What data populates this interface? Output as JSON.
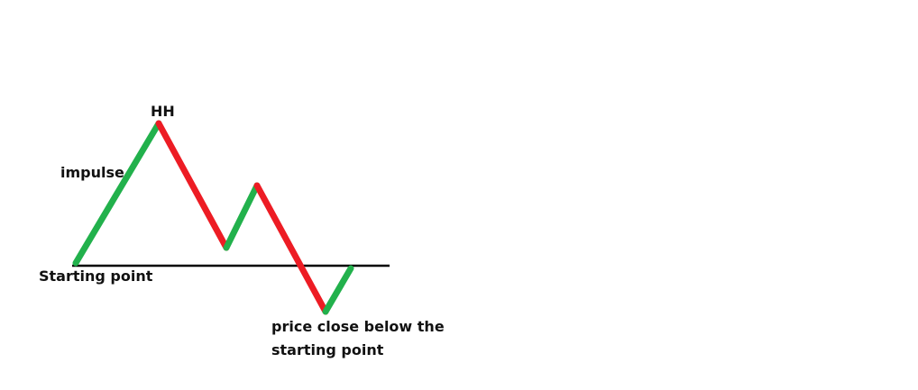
{
  "labels": {
    "hh": "HH",
    "impulse": "impulse",
    "starting_point": "Starting point",
    "close_line1": "price close below the",
    "close_line2": "starting point"
  },
  "colors": {
    "up_leg": "#22b14c",
    "down_leg": "#ed1c24",
    "baseline": "#000000"
  },
  "price_path": {
    "legs": [
      {
        "name": "impulse-leg",
        "direction": "up"
      },
      {
        "name": "pullback-leg",
        "direction": "down"
      },
      {
        "name": "bounce-leg",
        "direction": "up"
      },
      {
        "name": "breakdown-leg",
        "direction": "down"
      },
      {
        "name": "retest-leg",
        "direction": "up"
      }
    ]
  }
}
